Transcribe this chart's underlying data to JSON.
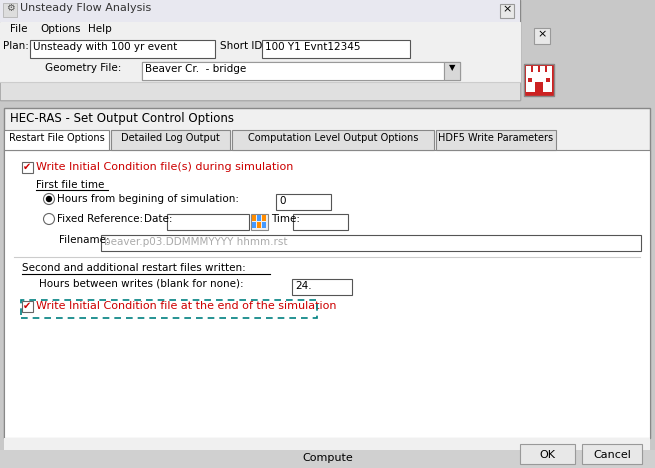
{
  "fig_width": 6.55,
  "fig_height": 4.68,
  "dpi": 100,
  "outer_bg": "#c8c8c8",
  "win_bg": "#f0f0f0",
  "white": "#ffffff",
  "border_color": "#888888",
  "dark_border": "#555555",
  "title_bar_text": "Unsteady Flow Analysis",
  "menu_items": [
    "File",
    "Options",
    "Help"
  ],
  "plan_label": "Plan:",
  "plan_value": "Unsteady with 100 yr event",
  "short_id_label": "Short ID:",
  "short_id_value": "100 Y1 Evnt12345",
  "geometry_label": "Geometry File:",
  "geometry_value": "Beaver Cr.  - bridge",
  "dialog_title": "HEC-RAS - Set Output Control Options",
  "tab_labels": [
    "Restart File Options",
    "Detailed Log Output",
    "Computation Level Output Options",
    "HDF5 Write Parameters"
  ],
  "checkbox1_text": "Write Initial Condition file(s) during simulation",
  "red_color": "#cc0000",
  "first_file_time_label": "First file time",
  "radio1_text": "Hours from begining of simulation:",
  "radio1_value": "0",
  "radio2_text": "Fixed Reference:",
  "date_label": "Date:",
  "time_label": "Time:",
  "filename_label": "Filename:",
  "filename_placeholder": "beaver.p03.DDMMMYYYY hhmm.rst",
  "ph_color": "#aaaaaa",
  "second_label": "Second and additional restart files written:",
  "hours_label": "Hours between writes (blank for none):",
  "hours_value": "24.",
  "checkbox2_text": "Write Initial Condition file at the end of the simulation",
  "teal_color": "#008080",
  "ok_label": "OK",
  "cancel_label": "Cancel",
  "compute_label": "Compute",
  "castle_red": "#cc2222"
}
